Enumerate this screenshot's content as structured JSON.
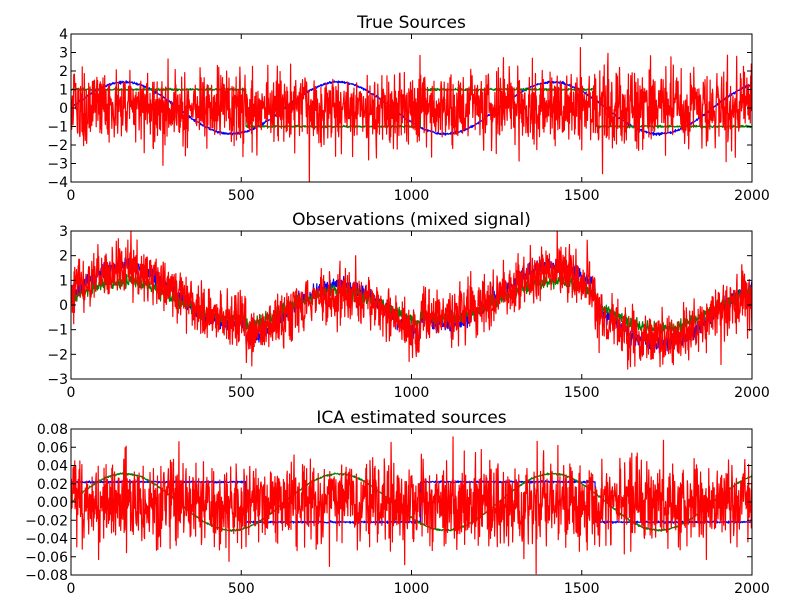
{
  "chart_data": [
    {
      "type": "line",
      "title": "True Sources",
      "xlim": [
        0,
        2000
      ],
      "ylim": [
        -4,
        4
      ],
      "xticks": [
        "0",
        "500",
        "1000",
        "1500",
        "2000"
      ],
      "xtick_values": [
        0,
        500,
        1000,
        1500,
        2000
      ],
      "yticks": [
        "4",
        "3",
        "2",
        "1",
        "0",
        "−1",
        "−2",
        "−3",
        "−4"
      ],
      "ytick_values": [
        4,
        3,
        2,
        1,
        0,
        -1,
        -2,
        -3,
        -4
      ],
      "grid": false,
      "series": [
        {
          "color": "#0000ff",
          "kind": "sine",
          "amplitude": 1.4,
          "period": 628.3,
          "phase": 0,
          "offset": 0,
          "noise": 0.03
        },
        {
          "color": "#008000",
          "kind": "square",
          "amplitude": 1.0,
          "period": 1026,
          "phase": 0,
          "offset": 0,
          "noise": 0.03
        },
        {
          "color": "#ff0000",
          "kind": "noise",
          "amplitude": 0,
          "period": 0,
          "phase": 0,
          "offset": 0,
          "noise": 1.0
        }
      ]
    },
    {
      "type": "line",
      "title": "Observations (mixed signal)",
      "xlim": [
        0,
        2000
      ],
      "ylim": [
        -3,
        3
      ],
      "xticks": [
        "0",
        "500",
        "1000",
        "1500",
        "2000"
      ],
      "xtick_values": [
        0,
        500,
        1000,
        1500,
        2000
      ],
      "yticks": [
        "3",
        "2",
        "1",
        "0",
        "−1",
        "−2",
        "−3"
      ],
      "ytick_values": [
        3,
        2,
        1,
        0,
        -1,
        -2,
        -3
      ],
      "grid": false,
      "series": [
        {
          "color": "#0000ff",
          "kind": "mixed",
          "amplitude": 1.2,
          "period": 628.3,
          "phase": 0,
          "offset": 0,
          "noise": 0.15,
          "square": 0.4
        },
        {
          "color": "#008000",
          "kind": "mixed",
          "amplitude": 0.75,
          "period": 628.3,
          "phase": 0,
          "offset": 0,
          "noise": 0.12,
          "square": 0.2
        },
        {
          "color": "#ff0000",
          "kind": "mixed",
          "amplitude": 0.95,
          "period": 628.3,
          "phase": 0,
          "offset": 0,
          "noise": 0.55,
          "square": 0.5
        }
      ]
    },
    {
      "type": "line",
      "title": "ICA estimated sources",
      "xlim": [
        0,
        2000
      ],
      "ylim": [
        -0.08,
        0.08
      ],
      "xticks": [
        "0",
        "500",
        "1000",
        "1500",
        "2000"
      ],
      "xtick_values": [
        0,
        500,
        1000,
        1500,
        2000
      ],
      "yticks": [
        "0.08",
        "0.06",
        "0.04",
        "0.02",
        "0.00",
        "−0.02",
        "−0.04",
        "−0.06",
        "−0.08"
      ],
      "ytick_values": [
        0.08,
        0.06,
        0.04,
        0.02,
        0,
        -0.02,
        -0.04,
        -0.06,
        -0.08
      ],
      "grid": false,
      "series": [
        {
          "color": "#0000ff",
          "kind": "square",
          "amplitude": 0.022,
          "period": 1026,
          "phase": 0,
          "offset": 0,
          "noise": 0.0005
        },
        {
          "color": "#008000",
          "kind": "sine",
          "amplitude": 0.031,
          "period": 628.3,
          "phase": 0,
          "offset": 0,
          "noise": 0.0005
        },
        {
          "color": "#ff0000",
          "kind": "noise",
          "amplitude": 0,
          "period": 0,
          "phase": 0,
          "offset": 0,
          "noise": 0.022
        }
      ]
    }
  ]
}
